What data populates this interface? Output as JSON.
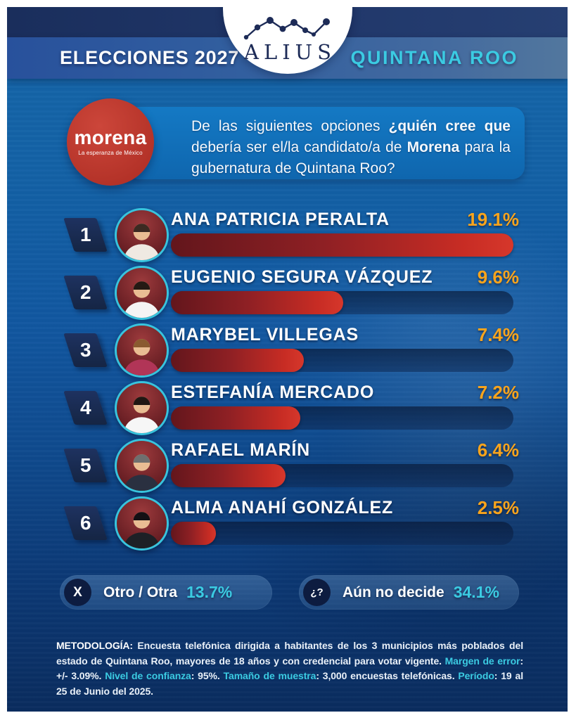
{
  "header": {
    "left_title": "ELECCIONES 2027",
    "right_title": "QUINTANA ROO",
    "brand": "ALIUS"
  },
  "morena": {
    "name": "morena",
    "tagline": "La esperanza de México"
  },
  "question": {
    "p1": "De las siguientes opciones ",
    "p2_bold": "¿quién cree que",
    "p3": " debería ser el/la candidato/a de ",
    "p4_bold": "Morena",
    "p5": " para la gubernatura de Quintana Roo?"
  },
  "candidates": [
    {
      "rank": "1",
      "name": "ANA PATRICIA PERALTA",
      "pct_label": "19.1%",
      "value": 19.1,
      "avatar": {
        "shirt": "#efe9e2",
        "hair": "#3c2a22"
      }
    },
    {
      "rank": "2",
      "name": "EUGENIO SEGURA VÁZQUEZ",
      "pct_label": "9.6%",
      "value": 9.6,
      "avatar": {
        "shirt": "#f4f4f4",
        "hair": "#241a14"
      }
    },
    {
      "rank": "3",
      "name": "MARYBEL VILLEGAS",
      "pct_label": "7.4%",
      "value": 7.4,
      "avatar": {
        "shirt": "#b13557",
        "hair": "#8a5a30"
      }
    },
    {
      "rank": "4",
      "name": "ESTEFANÍA MERCADO",
      "pct_label": "7.2%",
      "value": 7.2,
      "avatar": {
        "shirt": "#f6f6f6",
        "hair": "#201713"
      }
    },
    {
      "rank": "5",
      "name": "RAFAEL MARÍN",
      "pct_label": "6.4%",
      "value": 6.4,
      "avatar": {
        "shirt": "#2a3040",
        "hair": "#6f6f6f"
      }
    },
    {
      "rank": "6",
      "name": "ALMA ANAHÍ GONZÁLEZ",
      "pct_label": "2.5%",
      "value": 2.5,
      "avatar": {
        "shirt": "#1d2026",
        "hair": "#141014"
      }
    }
  ],
  "others": [
    {
      "icon": "X",
      "label": "Otro / Otra",
      "pct": "13.7%"
    },
    {
      "icon": "¿?",
      "label": "Aún no decide",
      "pct": "34.1%"
    }
  ],
  "methodology": {
    "segments": [
      {
        "style": "label",
        "text": "METODOLOGÍA: "
      },
      {
        "style": "white",
        "text": "Encuesta telefónica dirigida a habitantes de los 3 municipios más poblados del estado de Quintana Roo, mayores de 18 años y con credencial para votar vigente. "
      },
      {
        "style": "cyan",
        "text": "Margen de error"
      },
      {
        "style": "white",
        "text": ": +/- 3.09%. "
      },
      {
        "style": "cyan",
        "text": "Nivel de confianza"
      },
      {
        "style": "white",
        "text": ": 95%. "
      },
      {
        "style": "cyan",
        "text": "Tamaño de muestra"
      },
      {
        "style": "white",
        "text": ": 3,000 encuestas telefónicas. "
      },
      {
        "style": "cyan",
        "text": "Período"
      },
      {
        "style": "white",
        "text": ": 19 al 25 de Junio del 2025."
      }
    ]
  },
  "chart_data": {
    "type": "bar",
    "orientation": "horizontal",
    "title": "De las siguientes opciones ¿quién cree que debería ser el/la candidato/a de Morena para la gubernatura de Quintana Roo?",
    "categories": [
      "ANA PATRICIA PERALTA",
      "EUGENIO SEGURA VÁZQUEZ",
      "MARYBEL VILLEGAS",
      "ESTEFANÍA MERCADO",
      "RAFAEL MARÍN",
      "ALMA ANAHÍ GONZÁLEZ"
    ],
    "values": [
      19.1,
      9.6,
      7.4,
      7.2,
      6.4,
      2.5
    ],
    "value_suffix": "%",
    "xlim": [
      0,
      19.1
    ],
    "additional_options": [
      {
        "label": "Otro / Otra",
        "value": 13.7
      },
      {
        "label": "Aún no decide",
        "value": 34.1
      }
    ],
    "legend": "none",
    "grid": false
  },
  "colors": {
    "accent_cyan": "#3bcbe2",
    "percent_orange": "#f9a41c",
    "bar_dark_red": "#63161c",
    "bar_bright_red": "#d6372b",
    "navy": "#1b2d58",
    "morena_red": "#b23127",
    "bg_top": "#1566a9",
    "bg_bottom": "#0a2c5e"
  }
}
